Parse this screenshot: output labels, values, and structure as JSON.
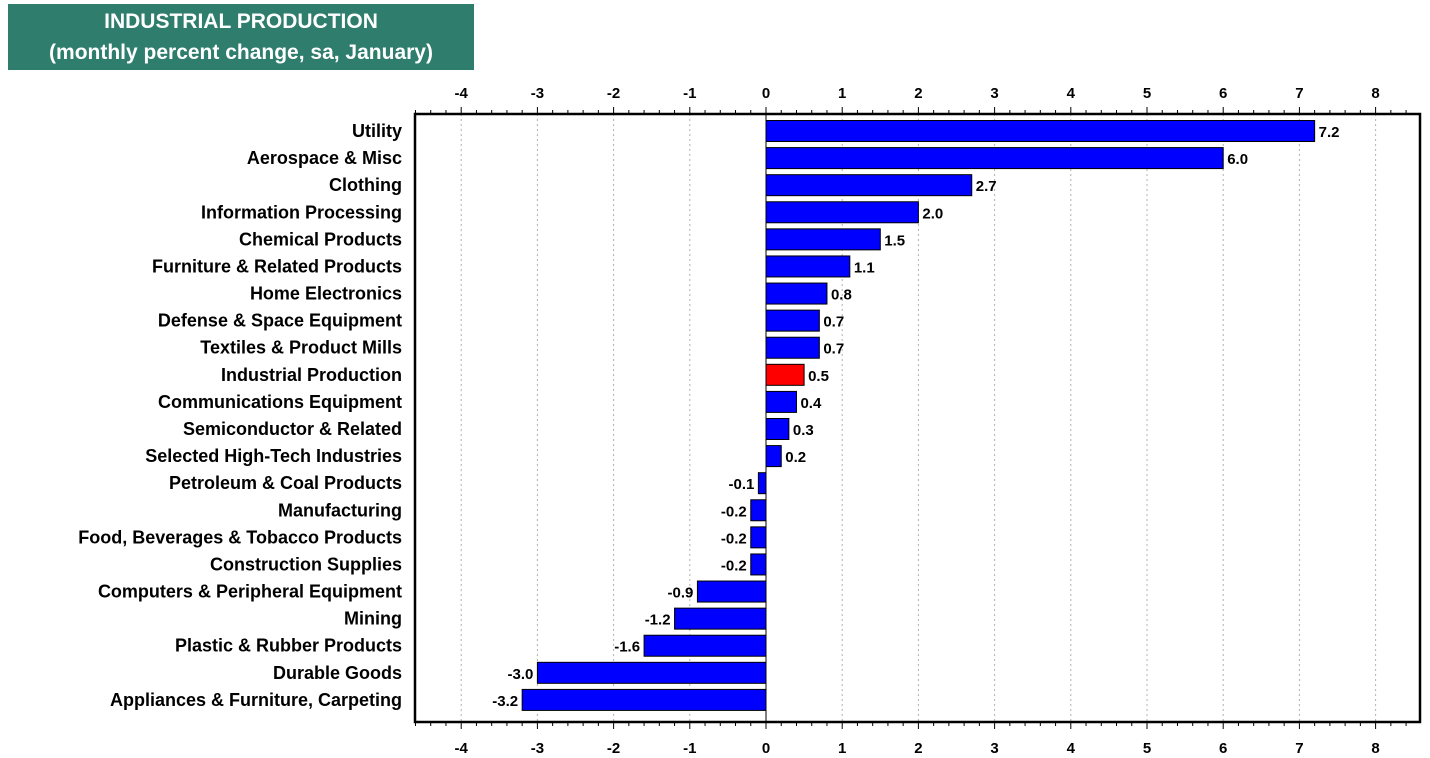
{
  "chart_data": {
    "type": "bar",
    "orientation": "horizontal",
    "title": "INDUSTRIAL PRODUCTION",
    "subtitle": "(monthly percent change, sa,  January)",
    "xlim": [
      -4,
      8
    ],
    "xticks": [
      -4,
      -3,
      -2,
      -1,
      0,
      1,
      2,
      3,
      4,
      5,
      6,
      7,
      8
    ],
    "grid": "vertical dotted",
    "categories": [
      "Utility",
      "Aerospace & Misc",
      "Clothing",
      "Information Processing",
      "Chemical Products",
      "Furniture & Related Products",
      "Home Electronics",
      "Defense & Space Equipment",
      "Textiles & Product Mills",
      "Industrial Production",
      "Communications Equipment",
      "Semiconductor & Related",
      "Selected High-Tech Industries",
      "Petroleum & Coal Products",
      "Manufacturing",
      "Food, Beverages & Tobacco Products",
      "Construction Supplies",
      "Computers & Peripheral Equipment",
      "Mining ",
      "Plastic & Rubber Products",
      "Durable Goods",
      "Appliances & Furniture, Carpeting"
    ],
    "values": [
      7.2,
      6.0,
      2.7,
      2.0,
      1.5,
      1.1,
      0.8,
      0.7,
      0.7,
      0.5,
      0.4,
      0.3,
      0.2,
      -0.1,
      -0.2,
      -0.2,
      -0.2,
      -0.9,
      -1.2,
      -1.6,
      -3.0,
      -3.2
    ],
    "labels": [
      "7.2",
      "6.0",
      "2.7",
      "2.0",
      "1.5",
      "1.1",
      "0.8",
      "0.7",
      "0.7",
      "0.5",
      "0.4",
      "0.3",
      "0.2",
      "-0.1",
      "-0.2",
      "-0.2",
      "-0.2",
      "-0.9",
      "-1.2",
      "-1.6",
      "-3.0",
      "-3.2"
    ],
    "highlight": "Industrial Production",
    "colors": {
      "bar": "#0000ff",
      "highlight": "#ff0000",
      "title_bg": "#2e7d6d",
      "grid": "#b0b0b0"
    }
  }
}
